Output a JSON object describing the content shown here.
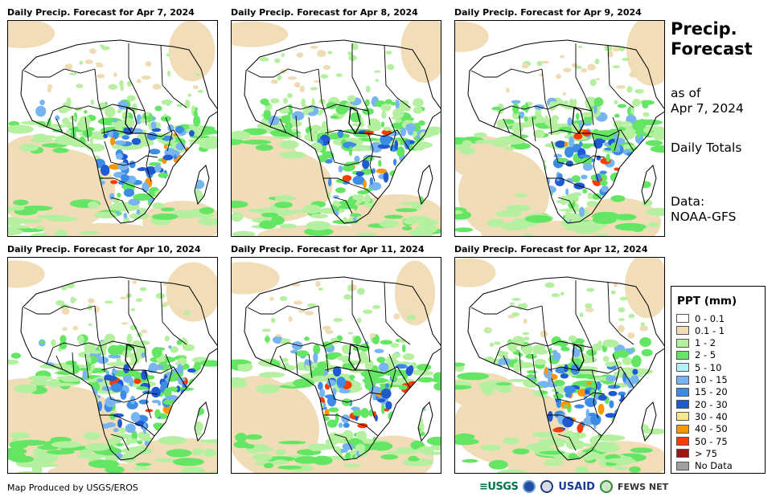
{
  "panels": [
    {
      "title": "Daily Precip. Forecast for Apr 7, 2024",
      "seed": 11
    },
    {
      "title": "Daily Precip. Forecast for Apr 8, 2024",
      "seed": 23
    },
    {
      "title": "Daily Precip. Forecast for Apr 9, 2024",
      "seed": 37
    },
    {
      "title": "Daily Precip. Forecast for Apr 10, 2024",
      "seed": 41
    },
    {
      "title": "Daily Precip. Forecast for Apr 11, 2024",
      "seed": 53
    },
    {
      "title": "Daily Precip. Forecast for Apr 12, 2024",
      "seed": 67
    }
  ],
  "sidebar": {
    "title_line1": "Precip.",
    "title_line2": "Forecast",
    "asof_line1": "as of",
    "asof_line2": "Apr 7, 2024",
    "totals": "Daily Totals",
    "data_line1": "Data:",
    "data_line2": "NOAA-GFS"
  },
  "legend": {
    "title": "PPT (mm)",
    "items": [
      {
        "label": "0 - 0.1",
        "color": "#ffffff"
      },
      {
        "label": "0.1 - 1",
        "color": "#f0dcb4"
      },
      {
        "label": "1 - 2",
        "color": "#b4f0a0"
      },
      {
        "label": "2 - 5",
        "color": "#64e664"
      },
      {
        "label": "5 - 10",
        "color": "#b4f0fa"
      },
      {
        "label": "10 - 15",
        "color": "#78b4f0"
      },
      {
        "label": "15 - 20",
        "color": "#3c8ce6"
      },
      {
        "label": "20 - 30",
        "color": "#1e5ad2"
      },
      {
        "label": "30 - 40",
        "color": "#fae68c"
      },
      {
        "label": "40 - 50",
        "color": "#fa9600"
      },
      {
        "label": "50 - 75",
        "color": "#fa3c00"
      },
      {
        "label": "> 75",
        "color": "#a01414"
      },
      {
        "label": "No Data",
        "color": "#a0a0a0"
      }
    ]
  },
  "footer": {
    "credit": "Map Produced by USGS/EROS"
  },
  "logos": {
    "usgs": "≡USGS",
    "usaid": "USAID",
    "fews": "FEWS NET"
  }
}
